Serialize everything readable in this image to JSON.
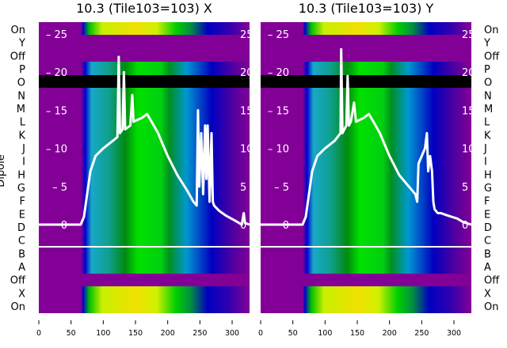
{
  "chart_data": [
    {
      "type": "heatmap",
      "title": "10.3 (Tile103=103) X",
      "ylabel": "Dipole",
      "row_labels": [
        "On",
        "Y",
        "Off",
        "P",
        "O",
        "N",
        "M",
        "L",
        "K",
        "J",
        "I",
        "H",
        "G",
        "F",
        "E",
        "D",
        "C",
        "B",
        "A",
        "Off",
        "X",
        "On"
      ],
      "xticks": [
        0,
        50,
        100,
        150,
        200,
        250,
        300
      ],
      "xlim": [
        0,
        327
      ],
      "inner_yticks": [
        0,
        5,
        10,
        15,
        20,
        25
      ],
      "inner_ylim": [
        -11.5,
        26.5
      ],
      "curve": [
        [
          0,
          0
        ],
        [
          65,
          0
        ],
        [
          70,
          1
        ],
        [
          75,
          4
        ],
        [
          80,
          7
        ],
        [
          88,
          9
        ],
        [
          100,
          10
        ],
        [
          115,
          11
        ],
        [
          122,
          11.5
        ],
        [
          124,
          22
        ],
        [
          126,
          12
        ],
        [
          130,
          12.5
        ],
        [
          132,
          20
        ],
        [
          134,
          12.5
        ],
        [
          142,
          13
        ],
        [
          145,
          17
        ],
        [
          147,
          13.5
        ],
        [
          160,
          14
        ],
        [
          168,
          14.5
        ],
        [
          175,
          13.5
        ],
        [
          185,
          12
        ],
        [
          200,
          9
        ],
        [
          215,
          6.5
        ],
        [
          230,
          4.5
        ],
        [
          240,
          3
        ],
        [
          245,
          2.5
        ],
        [
          247,
          15
        ],
        [
          249,
          5
        ],
        [
          252,
          12
        ],
        [
          255,
          4
        ],
        [
          258,
          13
        ],
        [
          260,
          6
        ],
        [
          262,
          13
        ],
        [
          265,
          3
        ],
        [
          268,
          12
        ],
        [
          270,
          3
        ],
        [
          272,
          2.5
        ],
        [
          280,
          1.8
        ],
        [
          290,
          1.2
        ],
        [
          305,
          0.5
        ],
        [
          315,
          0
        ],
        [
          318,
          1.5
        ],
        [
          320,
          0.2
        ],
        [
          327,
          0
        ]
      ]
    },
    {
      "type": "heatmap",
      "title": "10.3 (Tile103=103) Y",
      "row_labels": [
        "On",
        "Y",
        "Off",
        "P",
        "O",
        "N",
        "M",
        "L",
        "K",
        "J",
        "I",
        "H",
        "G",
        "F",
        "E",
        "D",
        "C",
        "B",
        "A",
        "Off",
        "X",
        "On"
      ],
      "xticks": [
        0,
        50,
        100,
        150,
        200,
        250,
        300
      ],
      "xlim": [
        0,
        327
      ],
      "inner_yticks": [
        0,
        5,
        10,
        15,
        20,
        25
      ],
      "inner_ylim": [
        -11.5,
        26.5
      ],
      "curve": [
        [
          0,
          0
        ],
        [
          65,
          0
        ],
        [
          70,
          1
        ],
        [
          75,
          4
        ],
        [
          80,
          7
        ],
        [
          88,
          9
        ],
        [
          100,
          10
        ],
        [
          115,
          11
        ],
        [
          124,
          12
        ],
        [
          125,
          23
        ],
        [
          127,
          12
        ],
        [
          133,
          13
        ],
        [
          135,
          19.5
        ],
        [
          137,
          13
        ],
        [
          140,
          13.5
        ],
        [
          145,
          16
        ],
        [
          148,
          13.5
        ],
        [
          160,
          14
        ],
        [
          168,
          14.5
        ],
        [
          175,
          13.5
        ],
        [
          185,
          12
        ],
        [
          200,
          9
        ],
        [
          215,
          6.5
        ],
        [
          230,
          5
        ],
        [
          240,
          4
        ],
        [
          243,
          3
        ],
        [
          245,
          8
        ],
        [
          250,
          9
        ],
        [
          255,
          10
        ],
        [
          258,
          12
        ],
        [
          260,
          7
        ],
        [
          263,
          9
        ],
        [
          266,
          7
        ],
        [
          268,
          3
        ],
        [
          270,
          2
        ],
        [
          275,
          1.5
        ],
        [
          280,
          1.5
        ],
        [
          290,
          1.2
        ],
        [
          305,
          0.8
        ],
        [
          315,
          0.3
        ],
        [
          327,
          0
        ]
      ]
    }
  ],
  "colors": {
    "background": "#820096",
    "curve": "#ffffff",
    "mask": "#000000"
  }
}
